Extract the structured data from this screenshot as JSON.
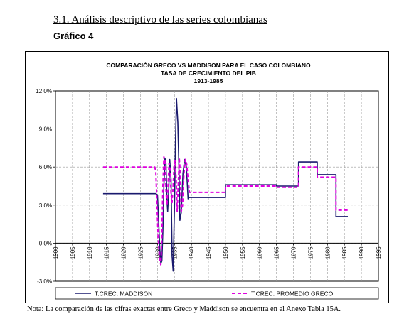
{
  "page": {
    "section_heading": "3.1. Análisis descriptivo de las series colombianas",
    "figure_label": "Gráfico 4",
    "footnote": "Nota: La comparación de las cifras exactas entre Greco y Maddison se encuentra en el Anexo Tabla 15A."
  },
  "chart_data": {
    "type": "line",
    "title_lines": [
      "COMPARACIÓN GRECO VS MADDISON PARA EL CASO COLOMBIANO",
      "TASA DE CRECIMIENTO DEL PIB",
      "1913-1985"
    ],
    "xlabel": "",
    "ylabel": "",
    "xlim": [
      1900,
      1995
    ],
    "ylim": [
      -3,
      12
    ],
    "x_ticks": [
      1900,
      1905,
      1910,
      1915,
      1920,
      1925,
      1930,
      1935,
      1940,
      1945,
      1950,
      1955,
      1960,
      1965,
      1970,
      1975,
      1980,
      1985,
      1990,
      1995
    ],
    "y_ticks": [
      -3,
      0,
      3,
      6,
      9,
      12
    ],
    "y_tick_labels": [
      "-3,0%",
      "0,0%",
      "3,0%",
      "6,0%",
      "9,0%",
      "12,0%"
    ],
    "grid": true,
    "legend_position": "bottom",
    "series": [
      {
        "name": "T.CREC. MADDISON",
        "color": "#1a1a6e",
        "dash": "solid",
        "x": [
          1914,
          1929.5,
          1930,
          1930.3,
          1930.7,
          1931,
          1931.3,
          1931.6,
          1931.9,
          1932.2,
          1932.5,
          1932.8,
          1933,
          1933.3,
          1933.6,
          1934,
          1934.3,
          1934.6,
          1935,
          1935.3,
          1935.6,
          1936,
          1936.3,
          1936.6,
          1937,
          1937.5,
          1938,
          1938.5,
          1939,
          1939.3,
          1939.6,
          1940,
          1950,
          1950.01,
          1965,
          1965.01,
          1971.5,
          1971.51,
          1977,
          1977.01,
          1982,
          1982.5,
          1982.51,
          1986
        ],
        "y": [
          3.9,
          3.9,
          3.8,
          2.0,
          -0.5,
          -1.6,
          -1.4,
          1.0,
          4.5,
          6.7,
          6.3,
          3.5,
          2.5,
          4.0,
          6.6,
          5.0,
          -1.0,
          -2.2,
          3.0,
          8.0,
          11.4,
          9.5,
          6.0,
          1.8,
          2.4,
          5.5,
          6.6,
          6.0,
          3.5,
          3.6,
          3.6,
          3.6,
          3.6,
          4.6,
          4.6,
          4.5,
          4.5,
          6.4,
          6.4,
          5.4,
          5.4,
          5.4,
          2.1,
          2.1
        ]
      },
      {
        "name": "T.CREC. PROMEDIO GRECO",
        "color": "#e000e0",
        "dash": "dashed",
        "x": [
          1914,
          1929.2,
          1929.5,
          1929.8,
          1930.2,
          1930.6,
          1931,
          1931.3,
          1931.6,
          1931.9,
          1932.2,
          1932.5,
          1932.8,
          1933.1,
          1933.4,
          1933.7,
          1934,
          1934.3,
          1934.6,
          1934.9,
          1935.2,
          1935.5,
          1935.8,
          1936.1,
          1936.4,
          1936.7,
          1937,
          1937.4,
          1937.8,
          1938.2,
          1938.6,
          1939,
          1939.4,
          1940,
          1950,
          1950.01,
          1965,
          1965.01,
          1971.5,
          1971.51,
          1977,
          1977.01,
          1982,
          1982.5,
          1982.51,
          1986
        ],
        "y": [
          6.0,
          6.0,
          5.7,
          3.5,
          0.5,
          -1.2,
          -1.7,
          0.5,
          4.5,
          6.8,
          6.5,
          4.2,
          3.0,
          4.5,
          6.3,
          6.0,
          3.8,
          3.2,
          4.5,
          6.2,
          6.5,
          5.0,
          2.5,
          4.5,
          6.7,
          5.6,
          2.5,
          3.0,
          5.5,
          6.6,
          6.2,
          5.0,
          4.0,
          4.0,
          4.0,
          4.5,
          4.5,
          4.4,
          4.4,
          6.0,
          6.0,
          5.2,
          5.2,
          5.2,
          2.6,
          2.6
        ]
      }
    ]
  }
}
